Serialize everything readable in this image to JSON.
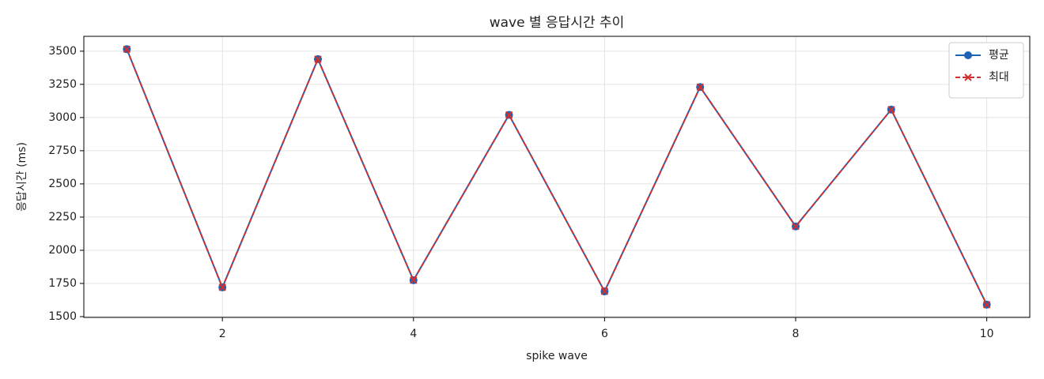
{
  "chart_data": {
    "type": "line",
    "title": "wave 별 응답시간 추이",
    "x_label": "spike wave",
    "y_label": "응답시간 (ms)",
    "x": [
      1,
      2,
      3,
      4,
      5,
      6,
      7,
      8,
      9,
      10
    ],
    "series": [
      {
        "name": "평균",
        "color": "#1f63b5",
        "values": [
          3515,
          1720,
          3440,
          1774,
          3020,
          1690,
          3230,
          2180,
          3060,
          1590
        ]
      },
      {
        "name": "최대",
        "color": "#d03030",
        "values": [
          3515,
          1720,
          3440,
          1774,
          3020,
          1690,
          3230,
          2180,
          3060,
          1590
        ]
      }
    ],
    "xlim": [
      0.55,
      10.45
    ],
    "ylim": [
      1494,
      3612
    ],
    "xticks": [
      2,
      4,
      6,
      8,
      10
    ],
    "yticks": [
      1500,
      1750,
      2000,
      2250,
      2500,
      2750,
      3000,
      3250,
      3500
    ],
    "grid": true,
    "legend": "upper right"
  }
}
